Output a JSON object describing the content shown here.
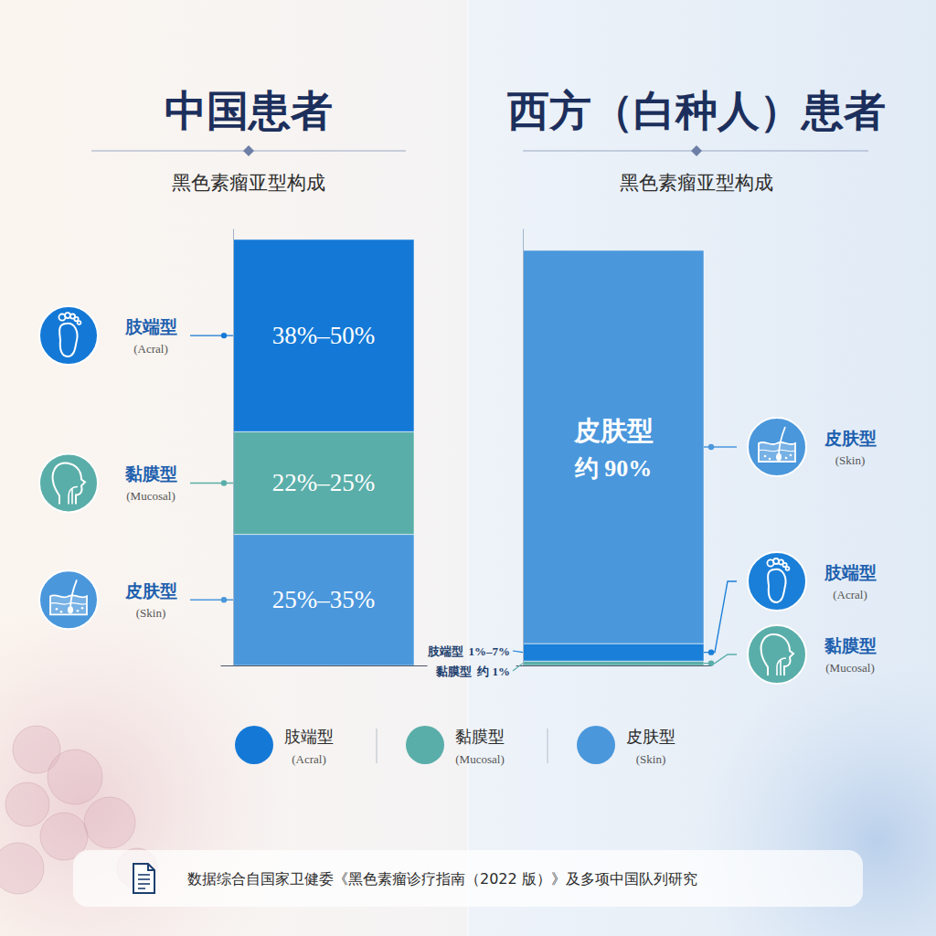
{
  "chart_data": [
    {
      "type": "bar",
      "title": "中国患者",
      "subtitle": "黑色素瘤亚型构成",
      "stacked": true,
      "data_labels": true,
      "tick_labels": false,
      "legend": "bottom",
      "categories": [
        null
      ],
      "ylim": [
        0,
        100
      ],
      "yticks": [],
      "series": [
        {
          "name": "肢端型",
          "label_en": "(Acral)",
          "color": "#1479d6",
          "values": [
            38
          ],
          "highs": [
            50
          ],
          "value_labels": [
            "38%–50%"
          ]
        },
        {
          "name": "黏膜型",
          "label_en": "(Mucosal)",
          "color": "#5aaea9",
          "values": [
            22
          ],
          "highs": [
            25
          ],
          "value_labels": [
            "22%–25%"
          ]
        },
        {
          "name": "皮肤型",
          "label_en": "(Skin)",
          "color": "#4a97dc",
          "values": [
            25
          ],
          "highs": [
            35
          ],
          "value_labels": [
            "25%–35%"
          ]
        }
      ]
    },
    {
      "type": "bar",
      "title": "西方（白种人）患者",
      "subtitle": "黑色素瘤亚型构成",
      "stacked": true,
      "data_labels": true,
      "tick_labels": false,
      "categories": [
        null
      ],
      "ylim": [
        0,
        100
      ],
      "yticks": [],
      "series": [
        {
          "name": "皮肤型",
          "label_en": "(Skin)",
          "color": "#4a97dc",
          "values": [
            90
          ],
          "highs": [
            null
          ],
          "value_labels": [
            "约 90%"
          ]
        },
        {
          "name": "肢端型",
          "label_en": "(Acral)",
          "color": "#1a7fd8",
          "values": [
            1
          ],
          "highs": [
            7
          ],
          "value_labels": [
            "1%–7%"
          ]
        },
        {
          "name": "黏膜型",
          "label_en": "(Mucosal)",
          "color": "#5aaeaa",
          "values": [
            1
          ],
          "highs": [
            null
          ],
          "value_labels": [
            "约 1%"
          ]
        }
      ]
    }
  ],
  "source": "数据综合自国家卫健委《黑色素瘤诊疗指南（2022 版）》及多项中国队列研究"
}
